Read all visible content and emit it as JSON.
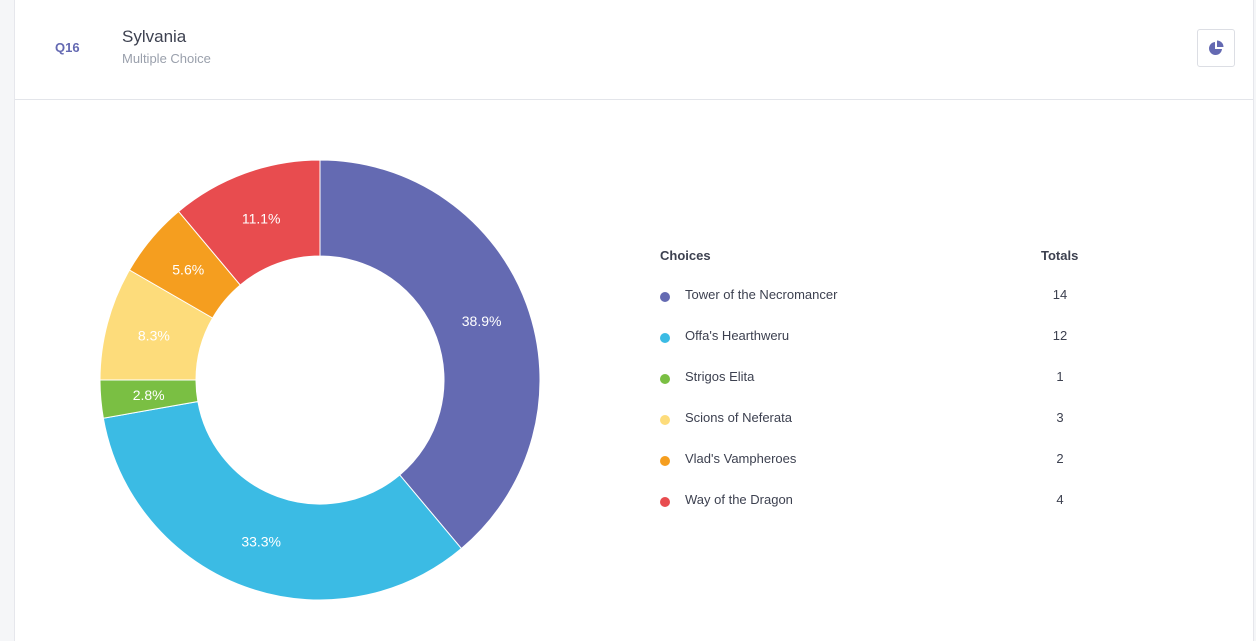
{
  "question": {
    "number": "Q16",
    "title": "Sylvania",
    "type": "Multiple Choice"
  },
  "toolbar": {
    "chart_toggle_icon": "pie-chart-icon"
  },
  "legend": {
    "choices_header": "Choices",
    "totals_header": "Totals"
  },
  "colors": {
    "accent": "#6469b2"
  },
  "chart_data": {
    "type": "pie",
    "donut": true,
    "categories": [
      "Tower of the Necromancer",
      "Offa's Hearthweru",
      "Strigos Elita",
      "Scions of Neferata",
      "Vlad's Vampheroes",
      "Way of the Dragon"
    ],
    "values": [
      14,
      12,
      1,
      3,
      2,
      4
    ],
    "percent_labels": [
      "38.9%",
      "33.3%",
      "2.8%",
      "8.3%",
      "5.6%",
      "11.1%"
    ],
    "totals_labels": [
      "14",
      "12",
      "1",
      "3",
      "2",
      "4"
    ],
    "colors": [
      "#646ab2",
      "#3bbbe4",
      "#7abf43",
      "#fddc7b",
      "#f59e1f",
      "#e84c4f"
    ],
    "legend_placement": "right"
  }
}
